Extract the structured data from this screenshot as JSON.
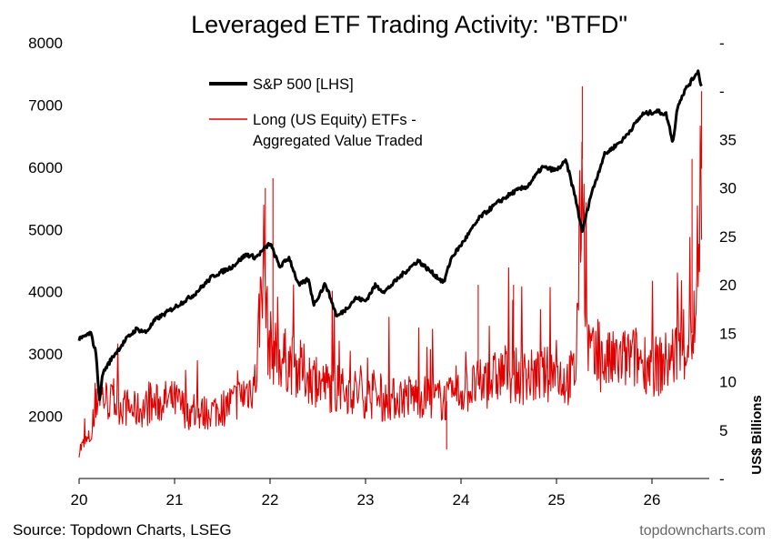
{
  "chart_data": {
    "type": "line",
    "title": "Leveraged ETF Trading Activity: \"BTFD\"",
    "x_tick_labels": [
      "20",
      "21",
      "22",
      "23",
      "24",
      "25",
      "26"
    ],
    "xlim": [
      2020.0,
      2026.6
    ],
    "y_left": {
      "ticks": [
        2000,
        3000,
        4000,
        5000,
        6000,
        7000,
        8000
      ],
      "tick_labels": [
        "2000",
        "3000",
        "4000",
        "5000",
        "6000",
        "7000",
        "8000"
      ],
      "lim": [
        1000,
        8000
      ],
      "scale": "linear"
    },
    "y_right": {
      "label": "US$ Billions",
      "ticks": [
        0,
        5,
        10,
        15,
        20,
        25,
        30,
        35
      ],
      "tick_labels": [
        "-",
        "5",
        "10",
        "15",
        "20",
        "25",
        "30",
        "35"
      ],
      "lim": [
        0,
        45
      ],
      "scale": "linear"
    },
    "grid": false,
    "legend": "top-left",
    "series": [
      {
        "name": "S&P 500 [LHS]",
        "axis": "left",
        "color": "#000000",
        "x": [
          2020.0,
          2020.12,
          2020.18,
          2020.21,
          2020.25,
          2020.35,
          2020.5,
          2020.6,
          2020.7,
          2020.8,
          2020.9,
          2021.0,
          2021.2,
          2021.4,
          2021.6,
          2021.75,
          2021.85,
          2022.0,
          2022.1,
          2022.2,
          2022.3,
          2022.4,
          2022.46,
          2022.58,
          2022.7,
          2022.78,
          2022.9,
          2023.0,
          2023.1,
          2023.2,
          2023.4,
          2023.55,
          2023.7,
          2023.82,
          2023.9,
          2024.0,
          2024.2,
          2024.4,
          2024.55,
          2024.7,
          2024.85,
          2025.0,
          2025.1,
          2025.2,
          2025.27,
          2025.35,
          2025.5,
          2025.7,
          2025.9,
          2026.05,
          2026.15,
          2026.22,
          2026.27,
          2026.35,
          2026.42,
          2026.48,
          2026.52
        ],
        "values": [
          3230,
          3340,
          3000,
          2240,
          2700,
          2950,
          3250,
          3400,
          3350,
          3550,
          3650,
          3750,
          3950,
          4250,
          4400,
          4600,
          4550,
          4780,
          4400,
          4550,
          4100,
          4200,
          3800,
          4130,
          3600,
          3700,
          3900,
          3850,
          4100,
          4000,
          4300,
          4500,
          4300,
          4150,
          4550,
          4750,
          5200,
          5450,
          5600,
          5700,
          6000,
          5950,
          6100,
          5500,
          4950,
          5500,
          6200,
          6450,
          6850,
          6900,
          6850,
          6400,
          7000,
          7250,
          7400,
          7550,
          7300
        ]
      },
      {
        "name": "Long (US Equity) ETFs - Aggregated Value Traded",
        "axis": "right",
        "color": "#e00000",
        "x": [
          2020.0,
          2020.05,
          2020.1,
          2020.15,
          2020.2,
          2020.3,
          2020.45,
          2020.6,
          2020.75,
          2020.9,
          2021.0,
          2021.2,
          2021.4,
          2021.55,
          2021.7,
          2021.85,
          2021.93,
          2021.98,
          2022.05,
          2022.1,
          2022.2,
          2022.35,
          2022.5,
          2022.7,
          2022.9,
          2023.0,
          2023.2,
          2023.4,
          2023.6,
          2023.85,
          2024.0,
          2024.15,
          2024.3,
          2024.45,
          2024.6,
          2024.8,
          2025.0,
          2025.1,
          2025.2,
          2025.27,
          2025.32,
          2025.4,
          2025.6,
          2025.8,
          2025.95,
          2026.05,
          2026.15,
          2026.25,
          2026.35,
          2026.42,
          2026.48,
          2026.52
        ],
        "values": [
          3,
          3.5,
          4,
          5,
          9,
          8,
          7.5,
          7,
          7.5,
          8,
          8,
          6.5,
          7,
          7.5,
          8.5,
          10,
          24,
          14,
          13,
          12.5,
          12,
          11,
          10,
          9,
          9,
          8.5,
          8,
          8.5,
          8.5,
          8,
          9,
          9.5,
          10,
          11,
          10.5,
          10.5,
          11,
          10,
          11,
          33,
          14,
          12,
          12,
          12.5,
          12,
          11.5,
          12,
          13,
          13.5,
          15,
          17.5,
          32
        ]
      }
    ]
  },
  "footer": {
    "source": "Source: Topdown Charts, LSEG",
    "website": "topdowncharts.com"
  }
}
